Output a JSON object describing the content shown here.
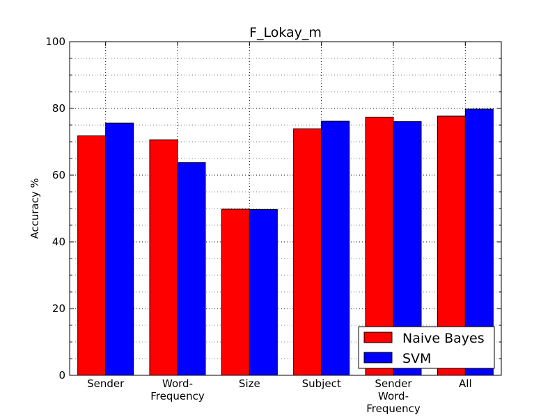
{
  "chart_data": {
    "type": "bar",
    "title": "F_Lokay_m",
    "xlabel": "",
    "ylabel": "Accuracy %",
    "ylim": [
      0,
      100
    ],
    "yticks": [
      0,
      20,
      40,
      60,
      80,
      100
    ],
    "minor_ytick_step": 5,
    "grid": true,
    "legend_position": "lower-right",
    "categories": [
      [
        "Sender"
      ],
      [
        "Word-",
        "Frequency"
      ],
      [
        "Size"
      ],
      [
        "Subject"
      ],
      [
        "Sender",
        "Word-",
        "Frequency"
      ],
      [
        "All"
      ]
    ],
    "series": [
      {
        "name": "Naive Bayes",
        "color": "#ff0000",
        "values": [
          71.8,
          70.6,
          49.8,
          73.9,
          77.4,
          77.7
        ]
      },
      {
        "name": "SVM",
        "color": "#0000ff",
        "values": [
          75.6,
          63.8,
          49.7,
          76.2,
          76.1,
          79.8
        ]
      }
    ]
  }
}
